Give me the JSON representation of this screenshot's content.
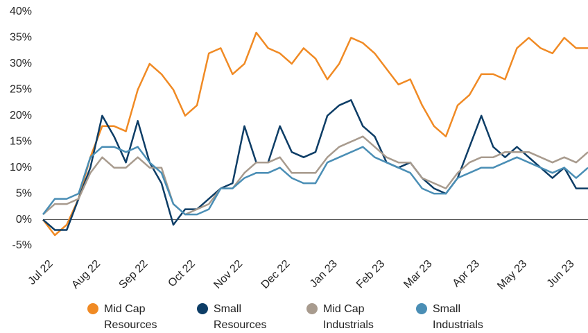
{
  "chart_data": {
    "type": "line",
    "categories": [
      "Jul 22",
      null,
      null,
      null,
      "Aug 22",
      null,
      null,
      null,
      "Sep 22",
      null,
      null,
      null,
      "Oct 22",
      null,
      null,
      null,
      "Nov 22",
      null,
      null,
      null,
      "Dec 22",
      null,
      null,
      null,
      "Jan 23",
      null,
      null,
      null,
      "Feb 23",
      null,
      null,
      null,
      "Mar 23",
      null,
      null,
      null,
      "Apr 23",
      null,
      null,
      null,
      "May 23",
      null,
      null,
      null,
      "Jun 23",
      null,
      null
    ],
    "series": [
      {
        "name": "Mid Cap Resources",
        "color": "#f08a24",
        "values": [
          0,
          -3,
          -1,
          4,
          12,
          18,
          18,
          17,
          25,
          30,
          28,
          25,
          20,
          22,
          32,
          33,
          28,
          30,
          36,
          33,
          32,
          30,
          33,
          31,
          27,
          30,
          35,
          34,
          32,
          29,
          26,
          27,
          22,
          18,
          16,
          22,
          24,
          28,
          28,
          27,
          33,
          35,
          33,
          32,
          35,
          33,
          33
        ]
      },
      {
        "name": "Small Resources",
        "color": "#0d3d66",
        "values": [
          0,
          -2,
          -2,
          4,
          10,
          20,
          16,
          11,
          19,
          11,
          7,
          -1,
          2,
          2,
          4,
          6,
          7,
          18,
          11,
          11,
          18,
          13,
          12,
          13,
          20,
          22,
          23,
          18,
          16,
          11,
          10,
          11,
          8,
          6,
          5,
          8,
          14,
          20,
          14,
          12,
          14,
          12,
          10,
          8,
          10,
          6,
          6
        ]
      },
      {
        "name": "Mid Cap Industrials",
        "color": "#a89b8e",
        "values": [
          1,
          3,
          3,
          4,
          9,
          12,
          10,
          10,
          12,
          10,
          10,
          3,
          1,
          2,
          3,
          6,
          6,
          9,
          11,
          11,
          12,
          9,
          9,
          9,
          12,
          14,
          15,
          16,
          14,
          12,
          11,
          11,
          8,
          7,
          6,
          9,
          11,
          12,
          12,
          13,
          13,
          13,
          12,
          11,
          12,
          11,
          13
        ]
      },
      {
        "name": "Small Industrials",
        "color": "#4a8eb5",
        "values": [
          1,
          4,
          4,
          5,
          12,
          14,
          14,
          13,
          14,
          11,
          9,
          3,
          1,
          1,
          2,
          6,
          6,
          8,
          9,
          9,
          10,
          8,
          7,
          7,
          11,
          12,
          13,
          14,
          12,
          11,
          10,
          9,
          6,
          5,
          5,
          8,
          9,
          10,
          10,
          11,
          12,
          11,
          10,
          9,
          10,
          8,
          10
        ]
      }
    ],
    "ylim": [
      -5,
      40
    ],
    "yticks": [
      {
        "value": -5,
        "label": "-5%"
      },
      {
        "value": 0,
        "label": "0%"
      },
      {
        "value": 5,
        "label": "5%"
      },
      {
        "value": 10,
        "label": "10%"
      },
      {
        "value": 15,
        "label": "15%"
      },
      {
        "value": 20,
        "label": "20%"
      },
      {
        "value": 25,
        "label": "25%"
      },
      {
        "value": 30,
        "label": "30%"
      },
      {
        "value": 35,
        "label": "35%"
      },
      {
        "value": 40,
        "label": "40%"
      }
    ],
    "grid": false
  }
}
